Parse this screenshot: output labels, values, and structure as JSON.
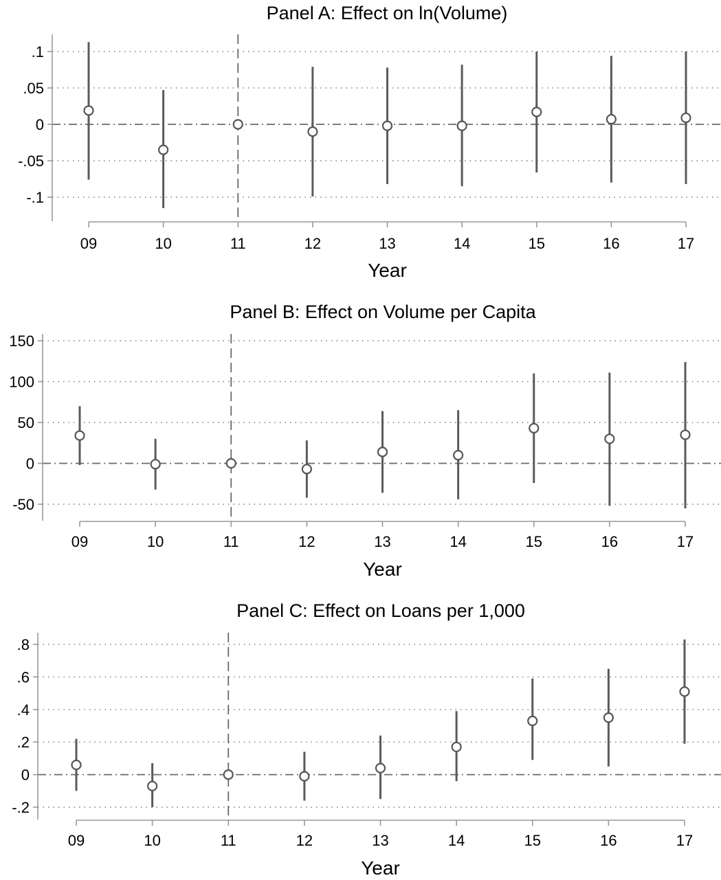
{
  "chart_data": [
    {
      "type": "scatter",
      "title": "Panel A: Effect on ln(Volume)",
      "xlabel": "Year",
      "ylabel": "",
      "categories": [
        "09",
        "10",
        "11",
        "12",
        "13",
        "14",
        "15",
        "16",
        "17"
      ],
      "ylim": [
        -0.12,
        0.12
      ],
      "yticks": [
        0.1,
        0.05,
        0,
        -0.05,
        -0.1
      ],
      "ytick_labels": [
        ".1",
        ".05",
        "0",
        "-.05",
        "-.1"
      ],
      "grid": true,
      "reference_year": "11",
      "series": [
        {
          "estimate": [
            0.019,
            -0.035,
            0.0,
            -0.01,
            -0.002,
            -0.002,
            0.017,
            0.007,
            0.009
          ],
          "ci_low": [
            -0.076,
            -0.115,
            0.0,
            -0.099,
            -0.082,
            -0.085,
            -0.066,
            -0.08,
            -0.082
          ],
          "ci_high": [
            0.113,
            0.047,
            0.0,
            0.079,
            0.078,
            0.082,
            0.1,
            0.094,
            0.1
          ]
        }
      ]
    },
    {
      "type": "scatter",
      "title": "Panel B: Effect on Volume per Capita",
      "xlabel": "Year",
      "ylabel": "",
      "categories": [
        "09",
        "10",
        "11",
        "12",
        "13",
        "14",
        "15",
        "16",
        "17"
      ],
      "ylim": [
        -70,
        158
      ],
      "yticks": [
        150,
        100,
        50,
        0,
        -50
      ],
      "ytick_labels": [
        "150",
        "100",
        "50",
        "0",
        "-50"
      ],
      "grid": true,
      "reference_year": "11",
      "series": [
        {
          "estimate": [
            34,
            -1,
            0,
            -7,
            14,
            10,
            43,
            30,
            35
          ],
          "ci_low": [
            -2,
            -32,
            0,
            -42,
            -36,
            -44,
            -24,
            -52,
            -55
          ],
          "ci_high": [
            70,
            30,
            0,
            28,
            64,
            65,
            110,
            111,
            124
          ]
        }
      ]
    },
    {
      "type": "scatter",
      "title": "Panel C: Effect on Loans per 1,000",
      "xlabel": "Year",
      "ylabel": "",
      "categories": [
        "09",
        "10",
        "11",
        "12",
        "13",
        "14",
        "15",
        "16",
        "17"
      ],
      "ylim": [
        -0.21,
        0.87
      ],
      "yticks": [
        0.8,
        0.6,
        0.4,
        0.2,
        0,
        -0.2
      ],
      "ytick_labels": [
        ".8",
        ".6",
        ".4",
        ".2",
        "0",
        "-.2"
      ],
      "grid": true,
      "reference_year": "11",
      "series": [
        {
          "estimate": [
            0.06,
            -0.07,
            0.0,
            -0.01,
            0.04,
            0.17,
            0.33,
            0.35,
            0.51
          ],
          "ci_low": [
            -0.1,
            -0.2,
            0.0,
            -0.16,
            -0.15,
            -0.04,
            0.09,
            0.05,
            0.19
          ],
          "ci_high": [
            0.22,
            0.07,
            0.0,
            0.14,
            0.24,
            0.39,
            0.59,
            0.65,
            0.83
          ]
        }
      ]
    }
  ]
}
